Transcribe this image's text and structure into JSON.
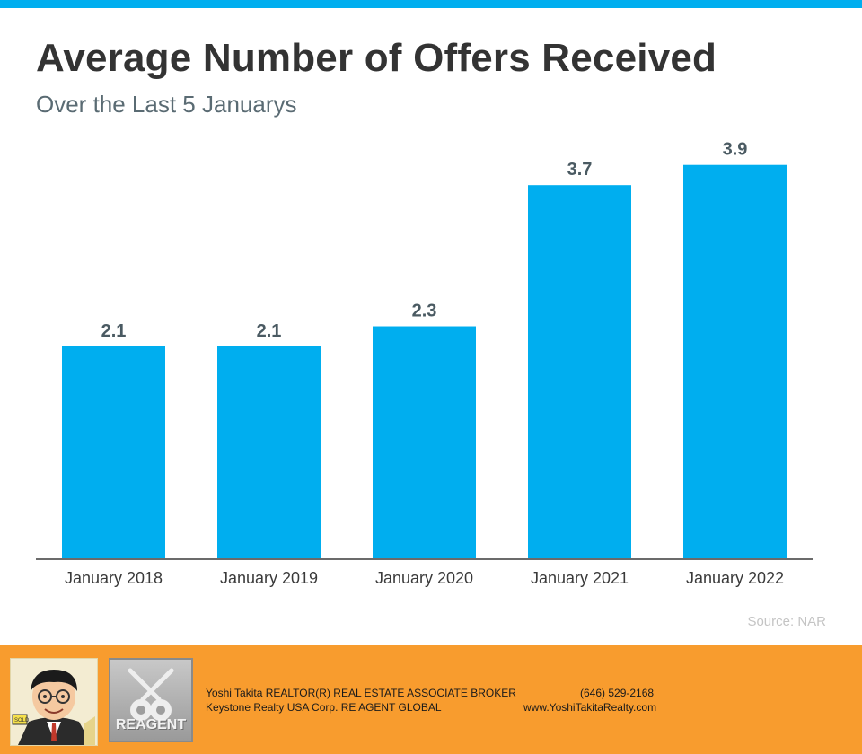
{
  "chart_data": {
    "type": "bar",
    "title": "Average Number of Offers Received",
    "subtitle": "Over the Last 5 Januarys",
    "categories": [
      "January 2018",
      "January 2019",
      "January 2020",
      "January 2021",
      "January 2022"
    ],
    "values": [
      2.1,
      2.1,
      2.3,
      3.7,
      3.9
    ],
    "value_labels": [
      "2.1",
      "2.1",
      "2.3",
      "3.7",
      "3.9"
    ],
    "xlabel": "",
    "ylabel": "",
    "ylim": [
      0,
      4.2
    ],
    "grid": false,
    "bar_color": "#00AEEF",
    "source": "Source: NAR"
  },
  "colors": {
    "accent": "#00AEEF",
    "footer": "#F89C2E",
    "title": "#333333"
  },
  "footer": {
    "agent_line": "Yoshi Takita REALTOR(R) REAL ESTATE ASSOCIATE BROKER",
    "company_line": "Keystone Realty USA Corp.  RE AGENT GLOBAL",
    "phone": "(646) 529-2168",
    "website": "www.YoshiTakitaRealty.com",
    "logo_text": "REAGENT",
    "avatar_sign": "SOLD"
  }
}
